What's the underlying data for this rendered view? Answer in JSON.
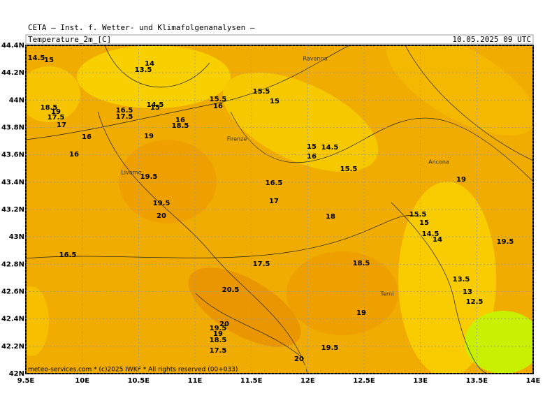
{
  "header": {
    "source": "CETA — Inst. f. Wetter- und Klimafolgenanalysen —",
    "field": "Temperature_2m_[C]",
    "valid": "10.05.2025 09 UTC"
  },
  "map": {
    "lon_ticks": [
      {
        "value": 9.5,
        "label": "9.5E"
      },
      {
        "value": 10,
        "label": "10E"
      },
      {
        "value": 10.5,
        "label": "10.5E"
      },
      {
        "value": 11,
        "label": "11E"
      },
      {
        "value": 11.5,
        "label": "11.5E"
      },
      {
        "value": 12,
        "label": "12E"
      },
      {
        "value": 12.5,
        "label": "12.5E"
      },
      {
        "value": 13,
        "label": "13E"
      },
      {
        "value": 13.5,
        "label": "13.5E"
      },
      {
        "value": 14,
        "label": "14E"
      }
    ],
    "lat_ticks": [
      {
        "value": 42,
        "label": "42N"
      },
      {
        "value": 42.2,
        "label": "42.2N"
      },
      {
        "value": 42.4,
        "label": "42.4N"
      },
      {
        "value": 42.6,
        "label": "42.6N"
      },
      {
        "value": 42.8,
        "label": "42.8N"
      },
      {
        "value": 43,
        "label": "43N"
      },
      {
        "value": 43.2,
        "label": "43.2N"
      },
      {
        "value": 43.4,
        "label": "43.4N"
      },
      {
        "value": 43.6,
        "label": "43.6N"
      },
      {
        "value": 43.8,
        "label": "43.8N"
      },
      {
        "value": 44,
        "label": "44N"
      },
      {
        "value": 44.2,
        "label": "44.2N"
      },
      {
        "value": 44.4,
        "label": "44.4N"
      }
    ],
    "cities": [
      "Ravenna",
      "Firenze",
      "Livorno",
      "Ancona",
      "Terni"
    ],
    "contour_labels": [
      "14.5",
      "15",
      "14",
      "13.5",
      "18.5",
      "19",
      "17.5",
      "17",
      "16",
      "16",
      "16.5",
      "17.5",
      "14.5",
      "15",
      "16",
      "18.5",
      "19",
      "15.5",
      "16",
      "15.5",
      "15",
      "15",
      "14.5",
      "16",
      "15.5",
      "19.5",
      "16.5",
      "17",
      "19.5",
      "20",
      "18",
      "19",
      "15.5",
      "15",
      "14.5",
      "14",
      "19.5",
      "16.5",
      "17.5",
      "18.5",
      "20.5",
      "13.5",
      "13",
      "12.5",
      "20",
      "19.5",
      "19",
      "18.5",
      "17.5",
      "19",
      "19.5",
      "20"
    ],
    "footer": "meteo-services.com * (c)2025 IWKF * All rights reserved (00+033)"
  }
}
